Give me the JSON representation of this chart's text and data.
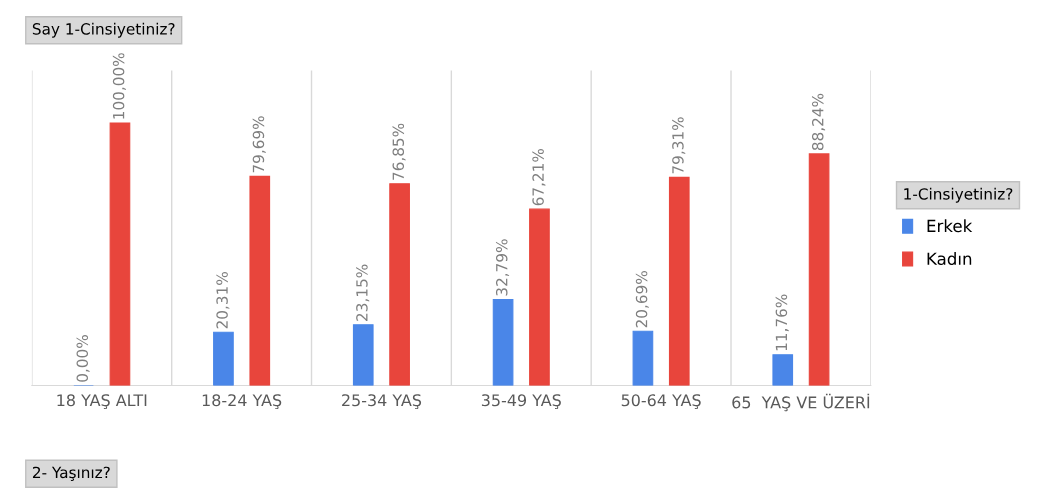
{
  "chart_data": {
    "type": "bar",
    "title": "Say 1-Cinsiyetiniz?",
    "xlabel": "2- Yaşınız?",
    "legend_title": "1-Cinsiyetiniz?",
    "categories": [
      "18 YAŞ ALTI",
      "18-24 YAŞ",
      "25-34 YAŞ",
      "35-49 YAŞ",
      "50-64 YAŞ",
      "65  YAŞ VE ÜZERİ"
    ],
    "series": [
      {
        "name": "Erkek",
        "color": "#4a86e8",
        "values": [
          0,
          20.31,
          23.15,
          32.79,
          20.69,
          11.76
        ],
        "value_labels": [
          "0,00%",
          "20,31%",
          "23,15%",
          "32,79%",
          "20,69%",
          "11,76%"
        ]
      },
      {
        "name": "Kadın",
        "color": "#e8453c",
        "values": [
          100,
          79.69,
          76.85,
          67.21,
          79.31,
          88.24
        ],
        "value_labels": [
          "100,00%",
          "79,69%",
          "76,85%",
          "67,21%",
          "79,31%",
          "88,24%"
        ]
      }
    ],
    "ylim": [
      0,
      120
    ],
    "grid": "x",
    "legend": "right",
    "tick_labels": "x"
  }
}
